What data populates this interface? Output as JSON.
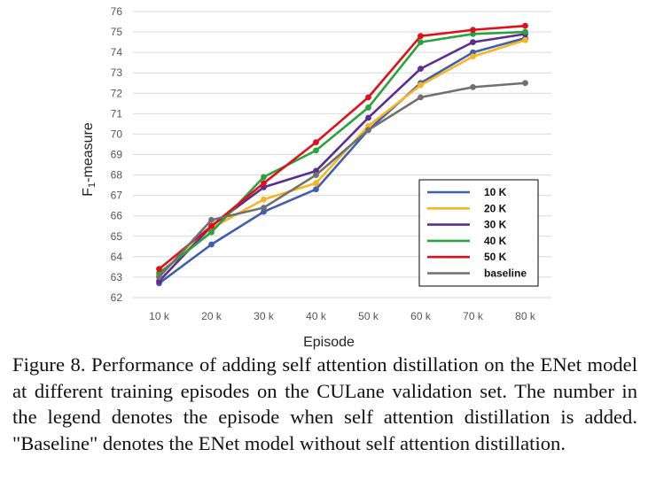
{
  "chart_data": {
    "type": "line",
    "xlabel": "Episode",
    "ylabel": "F1-measure",
    "ylabel_main": "F",
    "ylabel_sub": "1",
    "ylabel_rest": "-measure",
    "categories": [
      "10 k",
      "20 k",
      "30 k",
      "40 k",
      "50 k",
      "60 k",
      "70 k",
      "80 k"
    ],
    "ylim": [
      62,
      76
    ],
    "yticks": [
      "62",
      "63",
      "64",
      "65",
      "66",
      "67",
      "68",
      "69",
      "70",
      "71",
      "72",
      "73",
      "74",
      "75",
      "76"
    ],
    "grid": true,
    "legend_position": "bottom-right",
    "series": [
      {
        "name": "10 K",
        "color": "#3f5fae",
        "values": [
          62.7,
          64.6,
          66.2,
          67.3,
          70.2,
          72.5,
          74.0,
          74.7
        ]
      },
      {
        "name": "20 K",
        "color": "#f7b520",
        "values": [
          63.1,
          65.4,
          66.8,
          67.6,
          70.4,
          72.4,
          73.8,
          74.6
        ]
      },
      {
        "name": "30 K",
        "color": "#5b2d90",
        "values": [
          62.8,
          65.5,
          67.4,
          68.2,
          70.8,
          73.2,
          74.5,
          74.9
        ]
      },
      {
        "name": "40 K",
        "color": "#2aa33a",
        "values": [
          63.2,
          65.2,
          67.9,
          69.2,
          71.3,
          74.5,
          74.9,
          75.0
        ]
      },
      {
        "name": "50 K",
        "color": "#e0101a",
        "values": [
          63.4,
          65.5,
          67.6,
          69.6,
          71.8,
          74.8,
          75.1,
          75.3
        ]
      },
      {
        "name": "baseline",
        "color": "#707070",
        "values": [
          63.0,
          65.8,
          66.4,
          68.0,
          70.2,
          71.8,
          72.3,
          72.5
        ]
      }
    ]
  },
  "caption": "Figure 8. Performance of adding self attention distillation on the ENet model at different training episodes on the CULane validation set. The number in the legend denotes the episode when self attention distillation is added. \"Baseline\" denotes the ENet model without self attention distillation."
}
